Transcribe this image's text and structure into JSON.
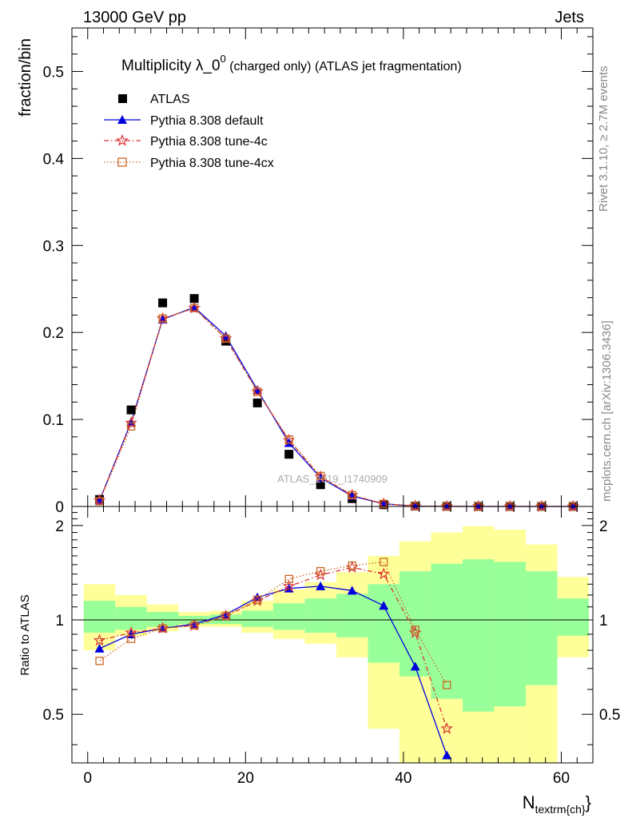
{
  "header": {
    "left": "13000 GeV pp",
    "right": "Jets"
  },
  "title": {
    "main": "Multiplicity λ_0",
    "sup": "0",
    "rest": " (charged only) (ATLAS jet fragmentation)"
  },
  "side": {
    "rivet": "Rivet 3.1.10, ≥ 2.7M events",
    "mcplots": "mcplots.cern.ch [arXiv:1306.3436]"
  },
  "watermark": "ATLAS_2019_I1740909",
  "colors": {
    "atlas": "#000000",
    "default": "#0000dd",
    "tune4c": "#dd3333",
    "tune4cx": "#cc6622",
    "band_outer": "#ffff99",
    "band_inner": "#99ff99"
  },
  "chart_data": [
    {
      "type": "scatter",
      "ylabel": "fraction/bin",
      "ylim": [
        0,
        0.55
      ],
      "xlim": [
        -2,
        64
      ],
      "yticks": [
        "0",
        "0.1",
        "0.2",
        "0.3",
        "0.4",
        "0.5"
      ],
      "ytick_values": [
        0,
        0.1,
        0.2,
        0.3,
        0.4,
        0.5
      ],
      "legend_position": "top-left",
      "x": [
        1.5,
        5.5,
        9.5,
        13.5,
        17.5,
        21.5,
        25.5,
        29.5,
        33.5,
        37.5,
        41.5,
        45.5,
        49.5,
        53.5,
        57.5,
        61.5
      ],
      "series": [
        {
          "name": "ATLAS",
          "marker": "square",
          "values": [
            0.008,
            0.111,
            0.234,
            0.239,
            0.19,
            0.119,
            0.06,
            0.025,
            0.009,
            0.002,
            0.0005,
            0.0002,
            0.0001,
            5e-05,
            2e-05,
            1e-05
          ]
        },
        {
          "name": "Pythia 8.308 default",
          "marker": "triangle",
          "values": [
            0.007,
            0.097,
            0.215,
            0.229,
            0.196,
            0.134,
            0.073,
            0.033,
            0.012,
            0.003,
            0.0005,
            8e-05,
            0,
            0,
            0,
            0
          ]
        },
        {
          "name": "Pythia 8.308 tune-4c",
          "marker": "star",
          "values": [
            0.007,
            0.096,
            0.216,
            0.228,
            0.193,
            0.132,
            0.076,
            0.034,
            0.013,
            0.003,
            0.0005,
            0.0001,
            0,
            0,
            0,
            0
          ]
        },
        {
          "name": "Pythia 8.308 tune-4cx",
          "marker": "open-square",
          "values": [
            0.006,
            0.092,
            0.216,
            0.228,
            0.193,
            0.132,
            0.077,
            0.035,
            0.013,
            0.003,
            0.0005,
            0.0001,
            0,
            0,
            0,
            0
          ]
        }
      ]
    },
    {
      "type": "line",
      "ylabel": "Ratio to ATLAS",
      "xlabel": "N",
      "xlabel_sub": "textrm{ch}",
      "xlabel_close": "}",
      "ylim": [
        0.35,
        2.3
      ],
      "xlim": [
        -2,
        64
      ],
      "xticks": [
        "0",
        "20",
        "40",
        "60"
      ],
      "xtick_values": [
        0,
        20,
        40,
        60
      ],
      "yticks": [
        "0.5",
        "1",
        "2"
      ],
      "ytick_values": [
        0.5,
        1,
        2
      ],
      "bin_edges": [
        -0.5,
        3.5,
        7.5,
        11.5,
        15.5,
        19.5,
        23.5,
        27.5,
        31.5,
        35.5,
        39.5,
        43.5,
        47.5,
        51.5,
        55.5,
        59.5,
        63.5
      ],
      "band_outer": {
        "lower": [
          0.8,
          0.89,
          0.92,
          0.95,
          0.95,
          0.91,
          0.87,
          0.84,
          0.76,
          0.45,
          0.3,
          0.3,
          0.3,
          0.3,
          0.3,
          0.76
        ],
        "upper": [
          1.3,
          1.2,
          1.12,
          1.06,
          1.07,
          1.15,
          1.25,
          1.32,
          1.42,
          1.6,
          1.78,
          1.9,
          1.99,
          1.94,
          1.74,
          1.37
        ]
      },
      "band_inner": {
        "lower": [
          0.91,
          0.93,
          0.95,
          0.97,
          0.97,
          0.95,
          0.93,
          0.91,
          0.88,
          0.73,
          0.66,
          0.56,
          0.51,
          0.53,
          0.62,
          0.89
        ]
      },
      "band_inner_upper": [
        1.15,
        1.1,
        1.06,
        1.03,
        1.04,
        1.07,
        1.13,
        1.17,
        1.21,
        1.3,
        1.43,
        1.51,
        1.56,
        1.53,
        1.43,
        1.17
      ],
      "x": [
        1.5,
        5.5,
        9.5,
        13.5,
        17.5,
        21.5,
        25.5,
        29.5,
        33.5,
        37.5,
        41.5,
        45.5
      ],
      "series": [
        {
          "name": "Pythia 8.308 default",
          "values": [
            0.81,
            0.9,
            0.94,
            0.97,
            1.04,
            1.18,
            1.26,
            1.28,
            1.24,
            1.11,
            0.71,
            0.37
          ]
        },
        {
          "name": "Pythia 8.308 tune-4c",
          "values": [
            0.86,
            0.91,
            0.94,
            0.96,
            1.03,
            1.15,
            1.28,
            1.39,
            1.47,
            1.4,
            0.91,
            0.45
          ]
        },
        {
          "name": "Pythia 8.308 tune-4cx",
          "values": [
            0.74,
            0.87,
            0.94,
            0.96,
            1.03,
            1.16,
            1.35,
            1.43,
            1.49,
            1.53,
            0.93,
            0.62
          ]
        }
      ]
    }
  ]
}
